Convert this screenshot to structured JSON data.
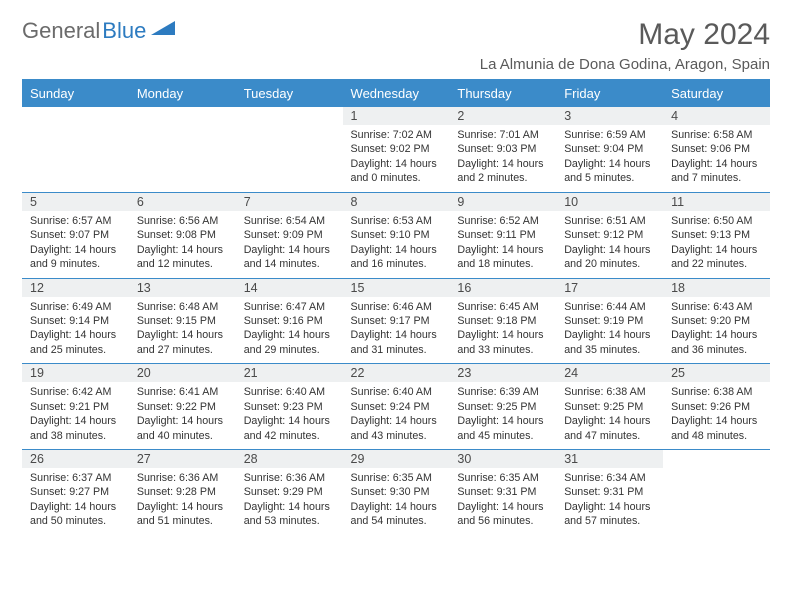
{
  "logo": {
    "part1": "General",
    "part2": "Blue"
  },
  "title": "May 2024",
  "location": "La Almunia de Dona Godina, Aragon, Spain",
  "colors": {
    "header_bg": "#3b8bc9",
    "header_text": "#ffffff",
    "daynum_bg": "#eef0f1",
    "border": "#3b8bc9",
    "title_color": "#5a5a5a",
    "logo_gray": "#6b6b6b",
    "logo_blue": "#2d7bc0"
  },
  "weekdays": [
    "Sunday",
    "Monday",
    "Tuesday",
    "Wednesday",
    "Thursday",
    "Friday",
    "Saturday"
  ],
  "weeks": [
    [
      null,
      null,
      null,
      {
        "n": "1",
        "sr": "7:02 AM",
        "ss": "9:02 PM",
        "dl": "14 hours and 0 minutes."
      },
      {
        "n": "2",
        "sr": "7:01 AM",
        "ss": "9:03 PM",
        "dl": "14 hours and 2 minutes."
      },
      {
        "n": "3",
        "sr": "6:59 AM",
        "ss": "9:04 PM",
        "dl": "14 hours and 5 minutes."
      },
      {
        "n": "4",
        "sr": "6:58 AM",
        "ss": "9:06 PM",
        "dl": "14 hours and 7 minutes."
      }
    ],
    [
      {
        "n": "5",
        "sr": "6:57 AM",
        "ss": "9:07 PM",
        "dl": "14 hours and 9 minutes."
      },
      {
        "n": "6",
        "sr": "6:56 AM",
        "ss": "9:08 PM",
        "dl": "14 hours and 12 minutes."
      },
      {
        "n": "7",
        "sr": "6:54 AM",
        "ss": "9:09 PM",
        "dl": "14 hours and 14 minutes."
      },
      {
        "n": "8",
        "sr": "6:53 AM",
        "ss": "9:10 PM",
        "dl": "14 hours and 16 minutes."
      },
      {
        "n": "9",
        "sr": "6:52 AM",
        "ss": "9:11 PM",
        "dl": "14 hours and 18 minutes."
      },
      {
        "n": "10",
        "sr": "6:51 AM",
        "ss": "9:12 PM",
        "dl": "14 hours and 20 minutes."
      },
      {
        "n": "11",
        "sr": "6:50 AM",
        "ss": "9:13 PM",
        "dl": "14 hours and 22 minutes."
      }
    ],
    [
      {
        "n": "12",
        "sr": "6:49 AM",
        "ss": "9:14 PM",
        "dl": "14 hours and 25 minutes."
      },
      {
        "n": "13",
        "sr": "6:48 AM",
        "ss": "9:15 PM",
        "dl": "14 hours and 27 minutes."
      },
      {
        "n": "14",
        "sr": "6:47 AM",
        "ss": "9:16 PM",
        "dl": "14 hours and 29 minutes."
      },
      {
        "n": "15",
        "sr": "6:46 AM",
        "ss": "9:17 PM",
        "dl": "14 hours and 31 minutes."
      },
      {
        "n": "16",
        "sr": "6:45 AM",
        "ss": "9:18 PM",
        "dl": "14 hours and 33 minutes."
      },
      {
        "n": "17",
        "sr": "6:44 AM",
        "ss": "9:19 PM",
        "dl": "14 hours and 35 minutes."
      },
      {
        "n": "18",
        "sr": "6:43 AM",
        "ss": "9:20 PM",
        "dl": "14 hours and 36 minutes."
      }
    ],
    [
      {
        "n": "19",
        "sr": "6:42 AM",
        "ss": "9:21 PM",
        "dl": "14 hours and 38 minutes."
      },
      {
        "n": "20",
        "sr": "6:41 AM",
        "ss": "9:22 PM",
        "dl": "14 hours and 40 minutes."
      },
      {
        "n": "21",
        "sr": "6:40 AM",
        "ss": "9:23 PM",
        "dl": "14 hours and 42 minutes."
      },
      {
        "n": "22",
        "sr": "6:40 AM",
        "ss": "9:24 PM",
        "dl": "14 hours and 43 minutes."
      },
      {
        "n": "23",
        "sr": "6:39 AM",
        "ss": "9:25 PM",
        "dl": "14 hours and 45 minutes."
      },
      {
        "n": "24",
        "sr": "6:38 AM",
        "ss": "9:25 PM",
        "dl": "14 hours and 47 minutes."
      },
      {
        "n": "25",
        "sr": "6:38 AM",
        "ss": "9:26 PM",
        "dl": "14 hours and 48 minutes."
      }
    ],
    [
      {
        "n": "26",
        "sr": "6:37 AM",
        "ss": "9:27 PM",
        "dl": "14 hours and 50 minutes."
      },
      {
        "n": "27",
        "sr": "6:36 AM",
        "ss": "9:28 PM",
        "dl": "14 hours and 51 minutes."
      },
      {
        "n": "28",
        "sr": "6:36 AM",
        "ss": "9:29 PM",
        "dl": "14 hours and 53 minutes."
      },
      {
        "n": "29",
        "sr": "6:35 AM",
        "ss": "9:30 PM",
        "dl": "14 hours and 54 minutes."
      },
      {
        "n": "30",
        "sr": "6:35 AM",
        "ss": "9:31 PM",
        "dl": "14 hours and 56 minutes."
      },
      {
        "n": "31",
        "sr": "6:34 AM",
        "ss": "9:31 PM",
        "dl": "14 hours and 57 minutes."
      },
      null
    ]
  ],
  "labels": {
    "sunrise": "Sunrise: ",
    "sunset": "Sunset: ",
    "daylight": "Daylight: "
  }
}
